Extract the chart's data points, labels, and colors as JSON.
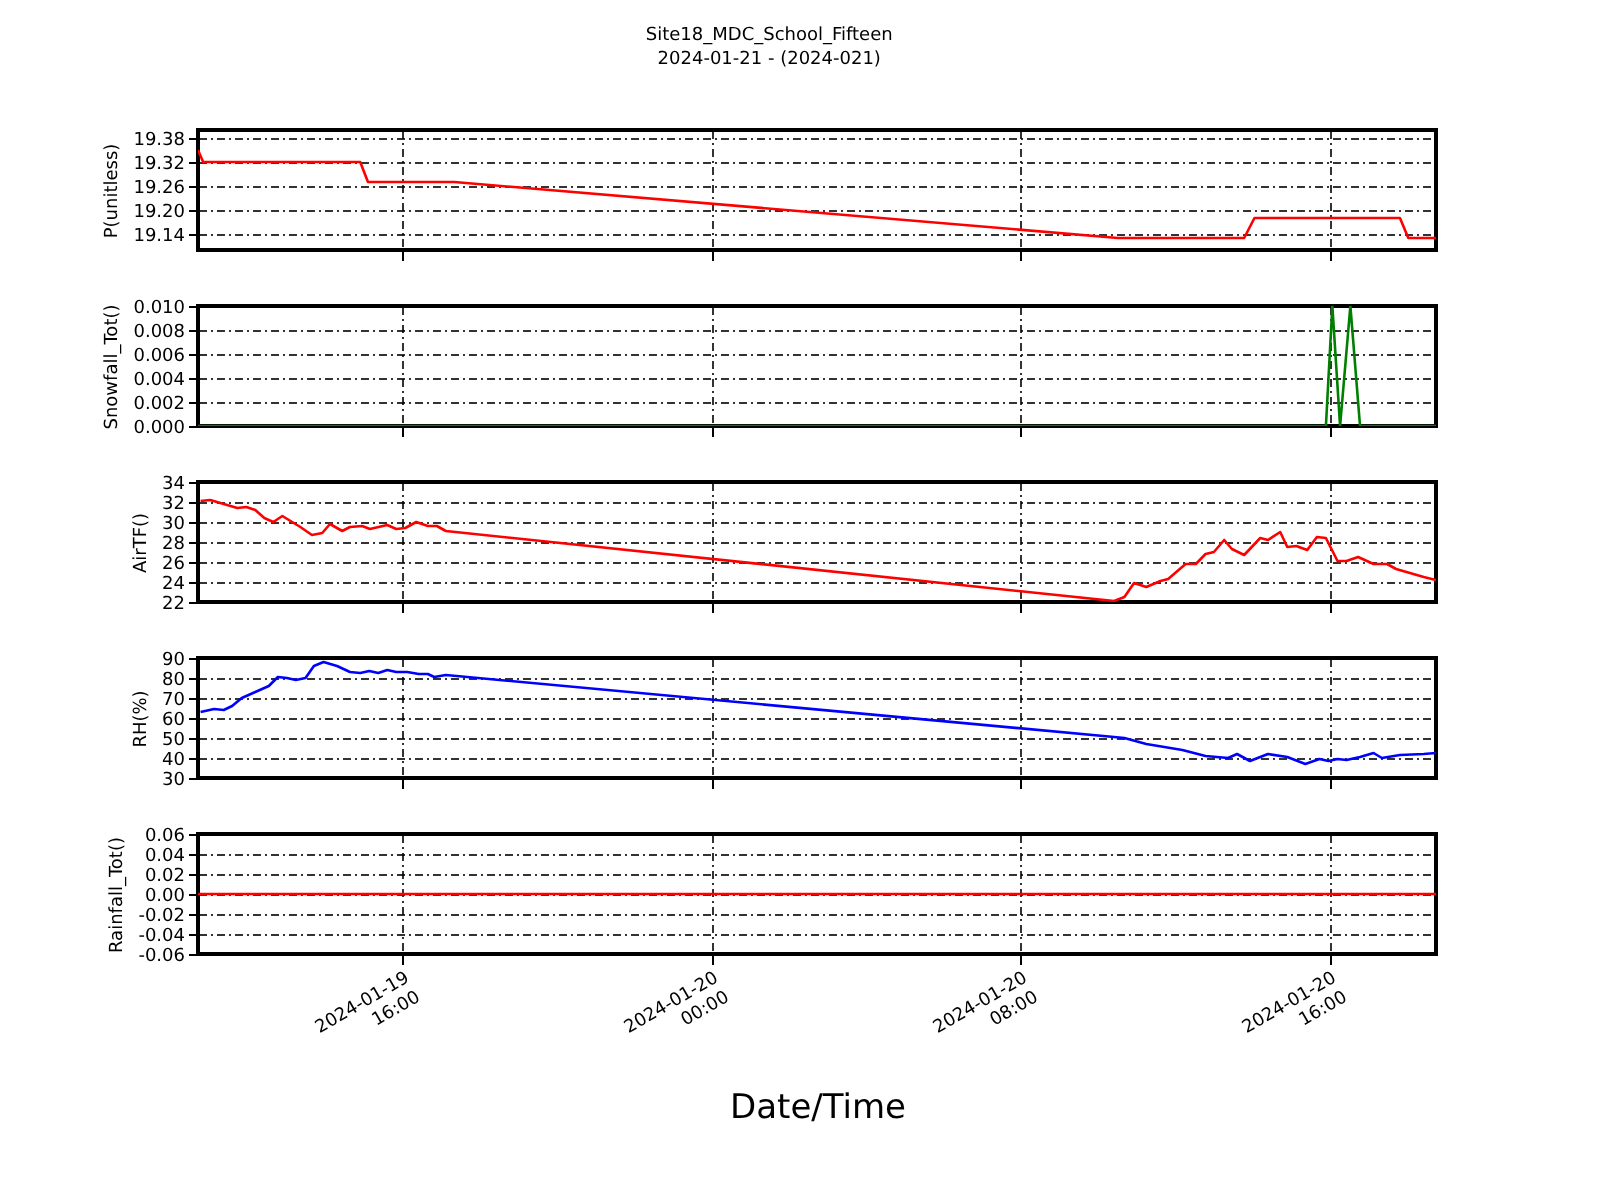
{
  "chart_data": [
    {
      "type": "line",
      "title": "Site18_MDC_School_Fifteen",
      "subtitle": "2024-01-21 - (2024-021)",
      "ylabel": "P(unitless)",
      "color": "#ff0000",
      "x": [
        "2024-01-19T10:43",
        "2024-01-19T10:51",
        "2024-01-19T14:55",
        "2024-01-19T15:07",
        "2024-01-19T17:21",
        "2024-01-20T10:32",
        "2024-01-20T13:48",
        "2024-01-20T14:04",
        "2024-01-20T17:50",
        "2024-01-20T18:03",
        "2024-01-20T18:46"
      ],
      "values": [
        19.35,
        19.32,
        19.32,
        19.27,
        19.27,
        19.13,
        19.13,
        19.18,
        19.18,
        19.13,
        19.13
      ],
      "xlim": [
        "2024-01-19T10:43",
        "2024-01-20T18:46"
      ],
      "xticks": [
        {
          "value": "2024-01-19T16:00",
          "label": null
        },
        {
          "value": "2024-01-20T00:00",
          "label": null
        },
        {
          "value": "2024-01-20T08:00",
          "label": null
        },
        {
          "value": "2024-01-20T16:00",
          "label": null
        }
      ],
      "ylim": [
        19.1,
        19.4
      ],
      "yticks": [
        19.14,
        {
          "value": 19.2,
          "label": "19.20"
        },
        19.26,
        19.32,
        19.38
      ],
      "grid": true,
      "tick_labels": "y"
    },
    {
      "type": "line",
      "ylabel": "Snowfall_Tot()",
      "color": "#008000",
      "x": [
        "2024-01-19T10:43",
        "2024-01-19T17:21",
        "2024-01-20T10:42",
        "2024-01-20T15:55",
        "2024-01-20T16:05",
        "2024-01-20T16:17",
        "2024-01-20T16:33",
        "2024-01-20T16:48",
        "2024-01-20T18:46"
      ],
      "values": [
        0,
        0,
        0,
        0,
        0.01,
        0,
        0.01,
        0,
        0
      ],
      "xlim": [
        "2024-01-19T10:43",
        "2024-01-20T18:46"
      ],
      "xticks": [
        {
          "value": "2024-01-19T16:00",
          "label": null
        },
        {
          "value": "2024-01-20T00:00",
          "label": null
        },
        {
          "value": "2024-01-20T08:00",
          "label": null
        },
        {
          "value": "2024-01-20T16:00",
          "label": null
        }
      ],
      "ylim": [
        0,
        0.01
      ],
      "yticks": [
        {
          "value": 0,
          "label": "0.000"
        },
        {
          "value": 0.002,
          "label": "0.002"
        },
        {
          "value": 0.004,
          "label": "0.004"
        },
        {
          "value": 0.006,
          "label": "0.006"
        },
        {
          "value": 0.008,
          "label": "0.008"
        },
        {
          "value": 0.01,
          "label": "0.010"
        }
      ],
      "grid": true,
      "tick_labels": "y"
    },
    {
      "type": "line",
      "ylabel": "AirTF()",
      "color": "#ff0000",
      "x": [
        "2024-01-19T10:47",
        "2024-01-19T11:02",
        "2024-01-19T11:44",
        "2024-01-19T11:58",
        "2024-01-19T12:12",
        "2024-01-19T12:26",
        "2024-01-19T12:40",
        "2024-01-19T12:54",
        "2024-01-19T13:22",
        "2024-01-19T13:40",
        "2024-01-19T13:56",
        "2024-01-19T14:08",
        "2024-01-19T14:27",
        "2024-01-19T14:39",
        "2024-01-19T14:58",
        "2024-01-19T15:10",
        "2024-01-19T15:37",
        "2024-01-19T15:51",
        "2024-01-19T16:05",
        "2024-01-19T16:22",
        "2024-01-19T16:40",
        "2024-01-19T16:54",
        "2024-01-19T17:08",
        "2024-01-20T10:26",
        "2024-01-20T10:42",
        "2024-01-20T10:57",
        "2024-01-20T11:16",
        "2024-01-20T11:38",
        "2024-01-20T11:50",
        "2024-01-20T12:17",
        "2024-01-20T12:33",
        "2024-01-20T12:48",
        "2024-01-20T13:01",
        "2024-01-20T13:17",
        "2024-01-20T13:29",
        "2024-01-20T13:48",
        "2024-01-20T14:13",
        "2024-01-20T14:25",
        "2024-01-20T14:44",
        "2024-01-20T14:55",
        "2024-01-20T15:09",
        "2024-01-20T15:26",
        "2024-01-20T15:41",
        "2024-01-20T15:55",
        "2024-01-20T16:13",
        "2024-01-20T16:27",
        "2024-01-20T16:45",
        "2024-01-20T17:09",
        "2024-01-20T17:30",
        "2024-01-20T17:44",
        "2024-01-20T18:27",
        "2024-01-20T18:46"
      ],
      "values": [
        32.1,
        32.2,
        31.4,
        31.5,
        31.2,
        30.4,
        30.0,
        30.6,
        29.5,
        28.7,
        28.9,
        29.8,
        29.1,
        29.5,
        29.6,
        29.3,
        29.7,
        29.3,
        29.4,
        30.0,
        29.6,
        29.6,
        29.1,
        22.1,
        22.5,
        23.9,
        23.5,
        24.1,
        24.3,
        25.8,
        25.8,
        26.8,
        27.0,
        28.2,
        27.3,
        26.7,
        28.4,
        28.2,
        29.0,
        27.5,
        27.6,
        27.2,
        28.5,
        28.4,
        26.1,
        26.1,
        26.5,
        25.8,
        25.8,
        25.3,
        24.5,
        24.2
      ],
      "xlim": [
        "2024-01-19T10:43",
        "2024-01-20T18:46"
      ],
      "xticks": [
        {
          "value": "2024-01-19T16:00",
          "label": null
        },
        {
          "value": "2024-01-20T00:00",
          "label": null
        },
        {
          "value": "2024-01-20T08:00",
          "label": null
        },
        {
          "value": "2024-01-20T16:00",
          "label": null
        }
      ],
      "ylim": [
        22,
        34
      ],
      "yticks": [
        22,
        24,
        26,
        28,
        30,
        32,
        34
      ],
      "grid": true,
      "tick_labels": "y"
    },
    {
      "type": "line",
      "ylabel": "RH(%)",
      "color": "#0000ff",
      "x": [
        "2024-01-19T10:47",
        "2024-01-19T11:08",
        "2024-01-19T11:23",
        "2024-01-19T11:36",
        "2024-01-19T11:51",
        "2024-01-19T12:12",
        "2024-01-19T12:33",
        "2024-01-19T12:47",
        "2024-01-19T13:01",
        "2024-01-19T13:15",
        "2024-01-19T13:30",
        "2024-01-19T13:43",
        "2024-01-19T13:58",
        "2024-01-19T14:19",
        "2024-01-19T14:39",
        "2024-01-19T14:55",
        "2024-01-19T15:09",
        "2024-01-19T15:23",
        "2024-01-19T15:37",
        "2024-01-19T15:51",
        "2024-01-19T16:08",
        "2024-01-19T16:26",
        "2024-01-19T16:40",
        "2024-01-19T16:50",
        "2024-01-19T17:08",
        "2024-01-19T17:58",
        "2024-01-20T10:26",
        "2024-01-20T10:42",
        "2024-01-20T11:16",
        "2024-01-20T11:44",
        "2024-01-20T12:12",
        "2024-01-20T12:48",
        "2024-01-20T13:23",
        "2024-01-20T13:37",
        "2024-01-20T13:57",
        "2024-01-20T14:25",
        "2024-01-20T14:55",
        "2024-01-20T15:23",
        "2024-01-20T15:45",
        "2024-01-20T15:59",
        "2024-01-20T16:13",
        "2024-01-20T16:27",
        "2024-01-20T16:48",
        "2024-01-20T17:09",
        "2024-01-20T17:22",
        "2024-01-20T17:50",
        "2024-01-20T18:27",
        "2024-01-20T18:46"
      ],
      "values": [
        63,
        64.5,
        64,
        66,
        70,
        73,
        76,
        80.5,
        80,
        79,
        80,
        86,
        88,
        86,
        83,
        82.5,
        83.5,
        82.5,
        84,
        83,
        83,
        82,
        82,
        80.5,
        81.5,
        80,
        50.5,
        50,
        47,
        45.5,
        44,
        41,
        40,
        42,
        38.5,
        42,
        40.5,
        37,
        39.5,
        38.5,
        39.5,
        39,
        40.5,
        42.5,
        40,
        41.5,
        42,
        42.5
      ],
      "xlim": [
        "2024-01-19T10:43",
        "2024-01-20T18:46"
      ],
      "xticks": [
        {
          "value": "2024-01-19T16:00",
          "label": null
        },
        {
          "value": "2024-01-20T00:00",
          "label": null
        },
        {
          "value": "2024-01-20T08:00",
          "label": null
        },
        {
          "value": "2024-01-20T16:00",
          "label": null
        }
      ],
      "ylim": [
        30,
        90
      ],
      "yticks": [
        30,
        40,
        50,
        60,
        70,
        80,
        90
      ],
      "grid": true,
      "tick_labels": "y"
    },
    {
      "type": "line",
      "ylabel": "Rainfall_Tot()",
      "xlabel": "Date/Time",
      "color": "#ff0000",
      "x": [
        "2024-01-19T10:43",
        "2024-01-20T18:46"
      ],
      "values": [
        0,
        0
      ],
      "xlim": [
        "2024-01-19T10:43",
        "2024-01-20T18:46"
      ],
      "xticks": [
        {
          "value": "2024-01-19T16:00",
          "label": "2024-01-19\n16:00"
        },
        {
          "value": "2024-01-20T00:00",
          "label": "2024-01-20\n00:00"
        },
        {
          "value": "2024-01-20T08:00",
          "label": "2024-01-20\n08:00"
        },
        {
          "value": "2024-01-20T16:00",
          "label": "2024-01-20\n16:00"
        }
      ],
      "ylim": [
        -0.06,
        0.06
      ],
      "yticks": [
        {
          "value": -0.06,
          "label": "-0.06"
        },
        {
          "value": -0.04,
          "label": "-0.04"
        },
        {
          "value": -0.02,
          "label": "-0.02"
        },
        {
          "value": 0,
          "label": "0.00"
        },
        {
          "value": 0.02,
          "label": "0.02"
        },
        {
          "value": 0.04,
          "label": "0.04"
        },
        {
          "value": 0.06,
          "label": "0.06"
        }
      ],
      "grid": true
    }
  ]
}
